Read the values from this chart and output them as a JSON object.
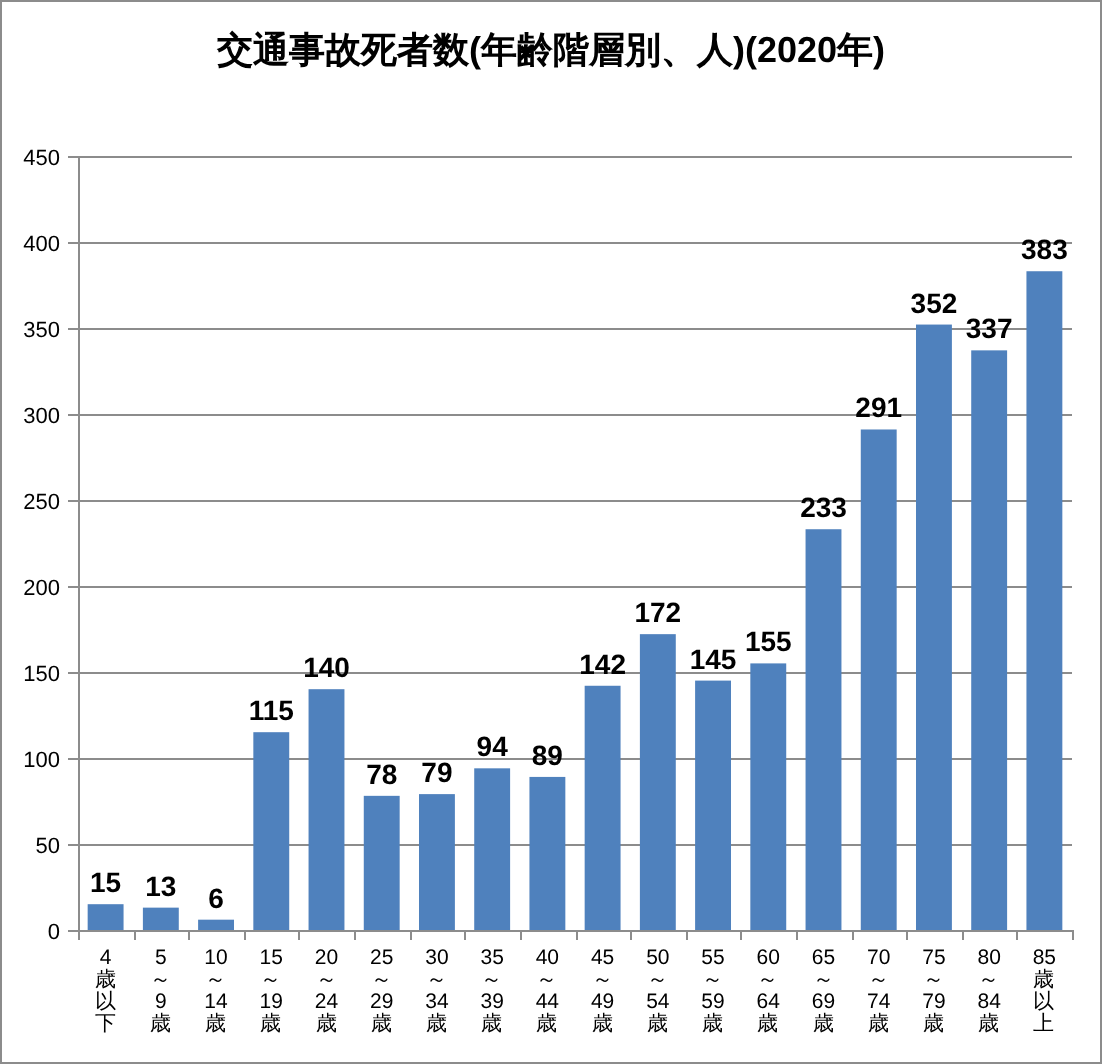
{
  "chart_data": {
    "type": "bar",
    "title": "交通事故死者数(年齢階層別、人)(2020年)",
    "categories": [
      "4歳以下",
      "5～9歳",
      "10～14歳",
      "15～19歳",
      "20～24歳",
      "25～29歳",
      "30～34歳",
      "35～39歳",
      "40～44歳",
      "45～49歳",
      "50～54歳",
      "55～59歳",
      "60～64歳",
      "65～69歳",
      "70～74歳",
      "75～79歳",
      "80～84歳",
      "85歳以上"
    ],
    "values": [
      15,
      13,
      6,
      115,
      140,
      78,
      79,
      94,
      89,
      142,
      172,
      145,
      155,
      233,
      291,
      352,
      337,
      383
    ],
    "color": "#4f81bd",
    "ylim": [
      0,
      450
    ],
    "yticks": [
      0,
      50,
      100,
      150,
      200,
      250,
      300,
      350,
      400,
      450
    ],
    "grid": "y",
    "data_labels": true
  }
}
